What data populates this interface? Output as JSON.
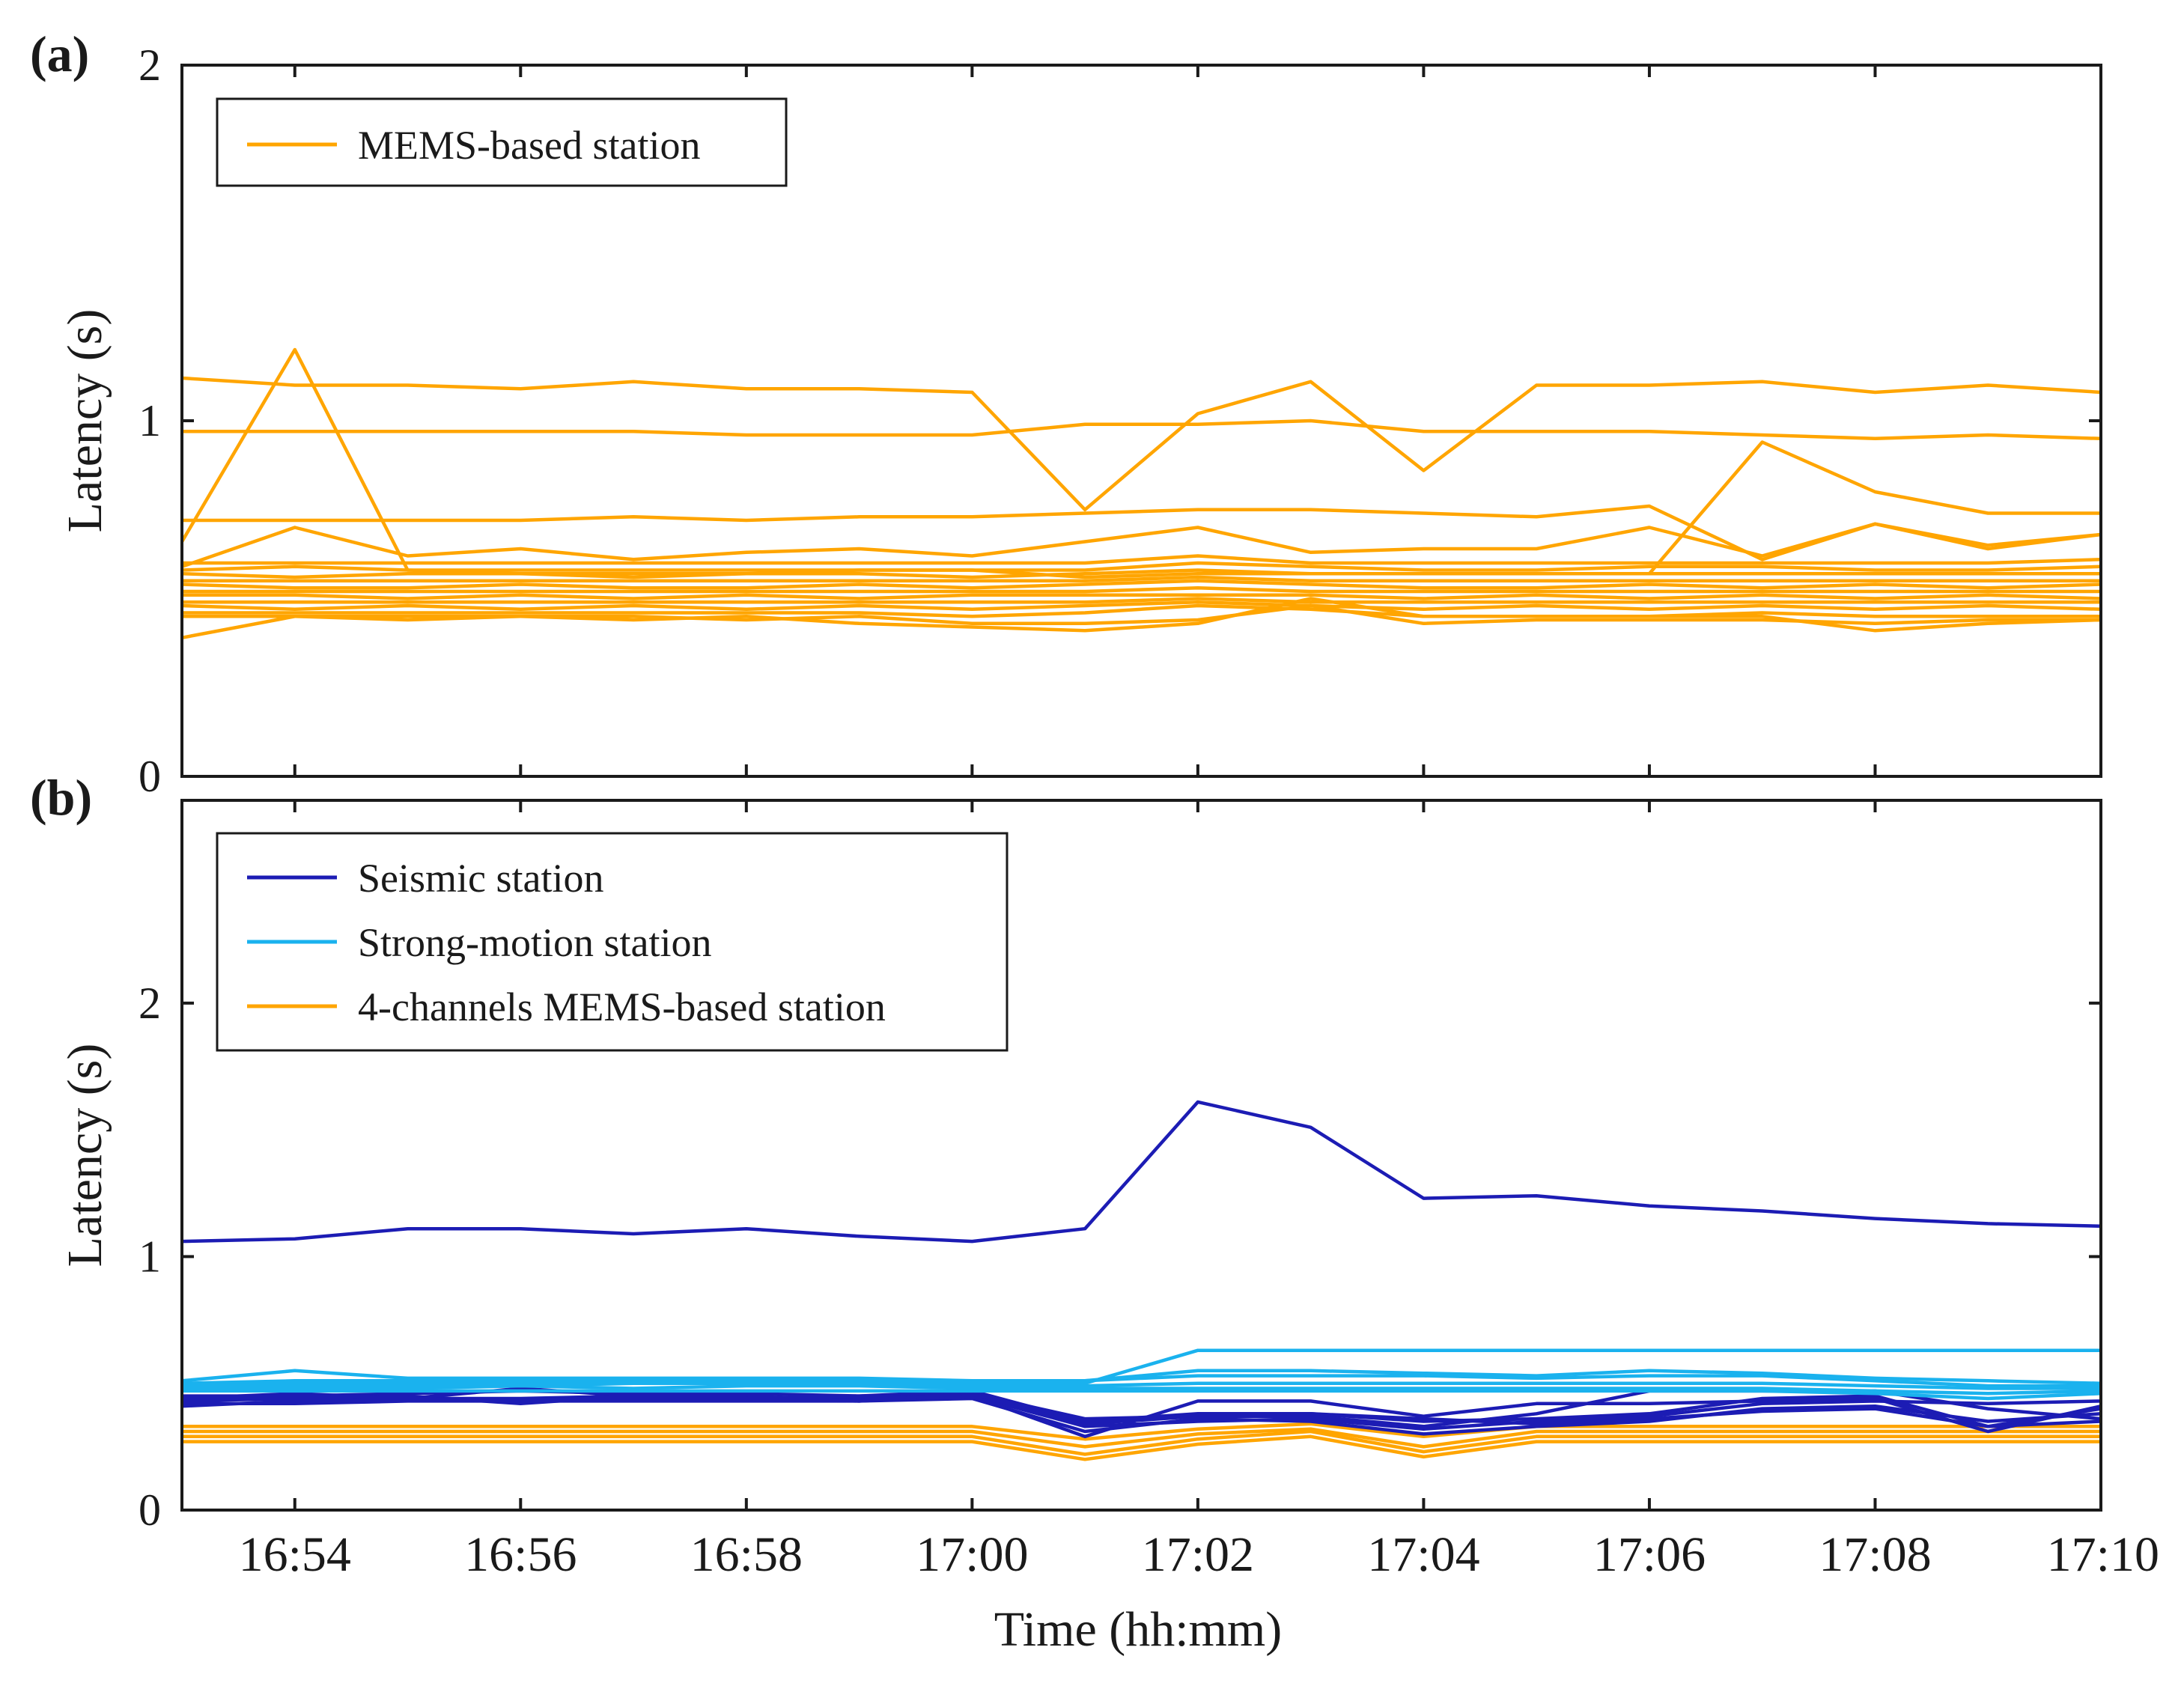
{
  "chart_data": [
    {
      "panel": "(a)",
      "type": "line",
      "ylabel": "Latency (s)",
      "ylim": [
        0,
        2
      ],
      "yticks": [
        "0",
        "1",
        "2"
      ],
      "x": [
        0,
        1,
        2,
        3,
        4,
        5,
        6,
        7,
        8,
        9,
        10,
        11,
        12,
        13,
        14,
        15,
        16,
        17
      ],
      "legend": [
        {
          "label": "MEMS-based station",
          "color": "#ffa500"
        }
      ],
      "series": [
        {
          "name": "MEMS-based station",
          "color": "#ffa500",
          "values": [
            1.12,
            1.1,
            1.1,
            1.09,
            1.11,
            1.09,
            1.09,
            1.08,
            0.75,
            1.02,
            1.11,
            0.86,
            1.1,
            1.1,
            1.11,
            1.08,
            1.1,
            1.08
          ]
        },
        {
          "name": "MEMS-based station",
          "color": "#ffa500",
          "values": [
            0.97,
            0.97,
            0.97,
            0.97,
            0.97,
            0.96,
            0.96,
            0.96,
            0.99,
            0.99,
            1.0,
            0.97,
            0.97,
            0.97,
            0.96,
            0.95,
            0.96,
            0.95
          ]
        },
        {
          "name": "MEMS-based station",
          "color": "#ffa500",
          "values": [
            0.66,
            1.2,
            0.58,
            0.57,
            0.57,
            0.57,
            0.58,
            0.58,
            0.56,
            0.57,
            0.57,
            0.57,
            0.57,
            0.57,
            0.94,
            0.8,
            0.74,
            0.74
          ]
        },
        {
          "name": "MEMS-based station",
          "color": "#ffa500",
          "values": [
            0.72,
            0.72,
            0.72,
            0.72,
            0.73,
            0.72,
            0.73,
            0.73,
            0.74,
            0.75,
            0.75,
            0.74,
            0.73,
            0.76,
            0.61,
            0.71,
            0.65,
            0.68
          ]
        },
        {
          "name": "MEMS-based station",
          "color": "#ffa500",
          "values": [
            0.59,
            0.7,
            0.62,
            0.64,
            0.61,
            0.63,
            0.64,
            0.62,
            0.66,
            0.7,
            0.63,
            0.64,
            0.64,
            0.7,
            0.62,
            0.71,
            0.64,
            0.68
          ]
        },
        {
          "name": "MEMS-based station",
          "color": "#ffa500",
          "values": [
            0.6,
            0.6,
            0.6,
            0.6,
            0.6,
            0.6,
            0.6,
            0.6,
            0.6,
            0.62,
            0.6,
            0.6,
            0.6,
            0.6,
            0.6,
            0.6,
            0.6,
            0.61
          ]
        },
        {
          "name": "MEMS-based station",
          "color": "#ffa500",
          "values": [
            0.58,
            0.59,
            0.58,
            0.58,
            0.58,
            0.58,
            0.58,
            0.58,
            0.58,
            0.6,
            0.59,
            0.58,
            0.58,
            0.59,
            0.59,
            0.58,
            0.58,
            0.59
          ]
        },
        {
          "name": "MEMS-based station",
          "color": "#ffa500",
          "values": [
            0.57,
            0.56,
            0.57,
            0.57,
            0.56,
            0.57,
            0.57,
            0.56,
            0.57,
            0.58,
            0.57,
            0.57,
            0.57,
            0.57,
            0.57,
            0.57,
            0.57,
            0.57
          ]
        },
        {
          "name": "MEMS-based station",
          "color": "#ffa500",
          "values": [
            0.55,
            0.55,
            0.55,
            0.55,
            0.55,
            0.55,
            0.55,
            0.55,
            0.55,
            0.56,
            0.55,
            0.55,
            0.55,
            0.55,
            0.55,
            0.55,
            0.55,
            0.55
          ]
        },
        {
          "name": "MEMS-based station",
          "color": "#ffa500",
          "values": [
            0.54,
            0.53,
            0.53,
            0.54,
            0.53,
            0.53,
            0.54,
            0.53,
            0.54,
            0.55,
            0.54,
            0.53,
            0.53,
            0.54,
            0.53,
            0.54,
            0.53,
            0.54
          ]
        },
        {
          "name": "MEMS-based station",
          "color": "#ffa500",
          "values": [
            0.52,
            0.52,
            0.52,
            0.52,
            0.52,
            0.52,
            0.52,
            0.52,
            0.52,
            0.53,
            0.52,
            0.52,
            0.52,
            0.52,
            0.52,
            0.52,
            0.52,
            0.52
          ]
        },
        {
          "name": "MEMS-based station",
          "color": "#ffa500",
          "values": [
            0.51,
            0.51,
            0.5,
            0.51,
            0.5,
            0.51,
            0.5,
            0.51,
            0.51,
            0.51,
            0.51,
            0.5,
            0.51,
            0.5,
            0.51,
            0.5,
            0.51,
            0.5
          ]
        },
        {
          "name": "MEMS-based station",
          "color": "#ffa500",
          "values": [
            0.49,
            0.49,
            0.49,
            0.49,
            0.49,
            0.49,
            0.49,
            0.49,
            0.49,
            0.5,
            0.49,
            0.49,
            0.49,
            0.49,
            0.49,
            0.49,
            0.49,
            0.49
          ]
        },
        {
          "name": "MEMS-based station",
          "color": "#ffa500",
          "values": [
            0.48,
            0.47,
            0.48,
            0.47,
            0.48,
            0.47,
            0.48,
            0.47,
            0.48,
            0.49,
            0.48,
            0.47,
            0.48,
            0.47,
            0.48,
            0.47,
            0.48,
            0.47
          ]
        },
        {
          "name": "MEMS-based station",
          "color": "#ffa500",
          "values": [
            0.46,
            0.46,
            0.46,
            0.46,
            0.46,
            0.46,
            0.46,
            0.45,
            0.46,
            0.48,
            0.47,
            0.45,
            0.45,
            0.45,
            0.46,
            0.45,
            0.45,
            0.45
          ]
        },
        {
          "name": "MEMS-based station",
          "color": "#ffa500",
          "values": [
            0.45,
            0.45,
            0.44,
            0.45,
            0.45,
            0.44,
            0.45,
            0.43,
            0.43,
            0.44,
            0.48,
            0.43,
            0.44,
            0.44,
            0.44,
            0.43,
            0.44,
            0.44
          ]
        },
        {
          "name": "MEMS-based station",
          "color": "#ffa500",
          "values": [
            0.39,
            0.45,
            0.45,
            0.45,
            0.44,
            0.45,
            0.43,
            0.42,
            0.41,
            0.43,
            0.5,
            0.45,
            0.45,
            0.45,
            0.45,
            0.41,
            0.43,
            0.44
          ]
        }
      ]
    },
    {
      "panel": "(b)",
      "type": "line",
      "xlabel": "Time (hh:mm)",
      "ylabel": "Latency (s)",
      "ylim": [
        0,
        2.8
      ],
      "yticks": [
        "0",
        "1",
        "2"
      ],
      "x": [
        0,
        1,
        2,
        3,
        4,
        5,
        6,
        7,
        8,
        9,
        10,
        11,
        12,
        13,
        14,
        15,
        16,
        17
      ],
      "xtick_labels": [
        "16:54",
        "16:56",
        "16:58",
        "17:00",
        "17:02",
        "17:04",
        "17:06",
        "17:08",
        "17:10"
      ],
      "legend": [
        {
          "label": "Seismic station",
          "color": "#1c1cb4"
        },
        {
          "label": "Strong-motion station",
          "color": "#1ab2ee"
        },
        {
          "label": "4-channels MEMS-based station",
          "color": "#ffa500"
        }
      ],
      "series": [
        {
          "name": "4-channels MEMS-based station",
          "color": "#ffa500",
          "values": [
            0.33,
            0.33,
            0.33,
            0.33,
            0.33,
            0.33,
            0.33,
            0.33,
            0.28,
            0.32,
            0.34,
            0.29,
            0.33,
            0.33,
            0.33,
            0.33,
            0.33,
            0.33
          ]
        },
        {
          "name": "4-channels MEMS-based station",
          "color": "#ffa500",
          "values": [
            0.31,
            0.31,
            0.31,
            0.31,
            0.31,
            0.31,
            0.31,
            0.31,
            0.25,
            0.3,
            0.32,
            0.25,
            0.31,
            0.31,
            0.31,
            0.31,
            0.31,
            0.31
          ]
        },
        {
          "name": "4-channels MEMS-based station",
          "color": "#ffa500",
          "values": [
            0.29,
            0.29,
            0.29,
            0.29,
            0.29,
            0.29,
            0.29,
            0.29,
            0.22,
            0.28,
            0.31,
            0.23,
            0.29,
            0.29,
            0.29,
            0.29,
            0.29,
            0.29
          ]
        },
        {
          "name": "4-channels MEMS-based station",
          "color": "#ffa500",
          "values": [
            0.27,
            0.27,
            0.27,
            0.27,
            0.27,
            0.27,
            0.27,
            0.27,
            0.2,
            0.26,
            0.29,
            0.21,
            0.27,
            0.27,
            0.27,
            0.27,
            0.27,
            0.27
          ]
        },
        {
          "name": "Seismic station",
          "color": "#1c1cb4",
          "values": [
            1.06,
            1.07,
            1.11,
            1.11,
            1.09,
            1.11,
            1.08,
            1.06,
            1.11,
            1.61,
            1.51,
            1.23,
            1.24,
            1.2,
            1.18,
            1.15,
            1.13,
            1.12
          ]
        },
        {
          "name": "Seismic station",
          "color": "#1c1cb4",
          "values": [
            0.45,
            0.45,
            0.46,
            0.47,
            0.46,
            0.46,
            0.45,
            0.46,
            0.36,
            0.37,
            0.38,
            0.35,
            0.36,
            0.38,
            0.44,
            0.45,
            0.33,
            0.4
          ]
        },
        {
          "name": "Seismic station",
          "color": "#1c1cb4",
          "values": [
            0.43,
            0.44,
            0.44,
            0.44,
            0.45,
            0.44,
            0.44,
            0.45,
            0.33,
            0.35,
            0.36,
            0.32,
            0.35,
            0.37,
            0.42,
            0.43,
            0.42,
            0.43
          ]
        },
        {
          "name": "Seismic station",
          "color": "#1c1cb4",
          "values": [
            0.42,
            0.42,
            0.43,
            0.43,
            0.43,
            0.43,
            0.43,
            0.44,
            0.31,
            0.36,
            0.35,
            0.3,
            0.33,
            0.35,
            0.4,
            0.41,
            0.35,
            0.38
          ]
        },
        {
          "name": "Seismic station",
          "color": "#1c1cb4",
          "values": [
            0.44,
            0.44,
            0.45,
            0.42,
            0.45,
            0.45,
            0.43,
            0.45,
            0.29,
            0.43,
            0.43,
            0.37,
            0.42,
            0.42,
            0.43,
            0.44,
            0.31,
            0.41
          ]
        },
        {
          "name": "Seismic station",
          "color": "#1c1cb4",
          "values": [
            0.41,
            0.43,
            0.44,
            0.43,
            0.44,
            0.44,
            0.43,
            0.46,
            0.34,
            0.37,
            0.37,
            0.33,
            0.38,
            0.47,
            0.47,
            0.47,
            0.4,
            0.36
          ]
        },
        {
          "name": "Seismic station",
          "color": "#1c1cb4",
          "values": [
            0.44,
            0.46,
            0.44,
            0.48,
            0.45,
            0.44,
            0.45,
            0.47,
            0.35,
            0.38,
            0.38,
            0.36,
            0.34,
            0.36,
            0.39,
            0.4,
            0.33,
            0.35
          ]
        },
        {
          "name": "Strong-motion station",
          "color": "#1ab2ee",
          "values": [
            0.5,
            0.5,
            0.5,
            0.5,
            0.5,
            0.5,
            0.5,
            0.5,
            0.5,
            0.63,
            0.63,
            0.63,
            0.63,
            0.63,
            0.63,
            0.63,
            0.63,
            0.63
          ]
        },
        {
          "name": "Strong-motion station",
          "color": "#1ab2ee",
          "values": [
            0.51,
            0.55,
            0.52,
            0.52,
            0.52,
            0.52,
            0.52,
            0.51,
            0.51,
            0.55,
            0.55,
            0.54,
            0.53,
            0.55,
            0.54,
            0.52,
            0.51,
            0.5
          ]
        },
        {
          "name": "Strong-motion station",
          "color": "#1ab2ee",
          "values": [
            0.5,
            0.51,
            0.51,
            0.51,
            0.51,
            0.51,
            0.51,
            0.51,
            0.51,
            0.53,
            0.53,
            0.53,
            0.52,
            0.53,
            0.53,
            0.51,
            0.49,
            0.49
          ]
        },
        {
          "name": "Strong-motion station",
          "color": "#1ab2ee",
          "values": [
            0.49,
            0.49,
            0.49,
            0.49,
            0.5,
            0.5,
            0.5,
            0.49,
            0.49,
            0.5,
            0.5,
            0.5,
            0.5,
            0.5,
            0.5,
            0.49,
            0.48,
            0.48
          ]
        },
        {
          "name": "Strong-motion station",
          "color": "#1ab2ee",
          "values": [
            0.48,
            0.48,
            0.48,
            0.49,
            0.48,
            0.49,
            0.49,
            0.48,
            0.48,
            0.48,
            0.48,
            0.48,
            0.48,
            0.48,
            0.48,
            0.47,
            0.46,
            0.47
          ]
        },
        {
          "name": "Strong-motion station",
          "color": "#1ab2ee",
          "values": [
            0.47,
            0.47,
            0.47,
            0.47,
            0.47,
            0.47,
            0.47,
            0.47,
            0.47,
            0.47,
            0.47,
            0.47,
            0.47,
            0.47,
            0.47,
            0.46,
            0.44,
            0.46
          ]
        }
      ]
    }
  ]
}
